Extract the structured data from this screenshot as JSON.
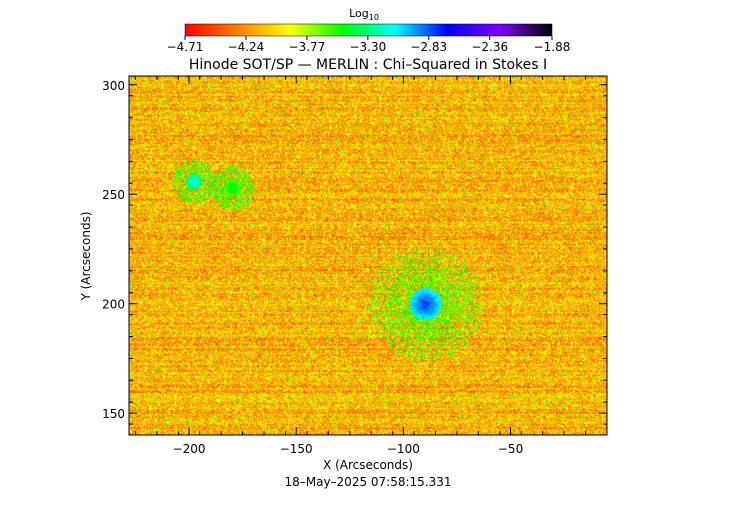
{
  "chart_data": {
    "type": "heatmap",
    "title": "Hinode SOT/SP — MERLIN : Chi–Squared in Stokes I",
    "xlabel": "X (Arcseconds)",
    "ylabel": "Y (Arcseconds)",
    "timestamp": "18–May–2025 07:58:15.331",
    "xlim": [
      -228,
      -5
    ],
    "ylim": [
      140,
      304
    ],
    "x_ticks": [
      -200,
      -150,
      -100,
      -50
    ],
    "x_tick_labels": [
      "−200",
      "−150",
      "−100",
      "−50"
    ],
    "y_ticks": [
      150,
      200,
      250,
      300
    ],
    "y_tick_labels": [
      "150",
      "200",
      "250",
      "300"
    ],
    "colorbar": {
      "label_main": "Log",
      "label_sub": "10",
      "range": [
        -4.71,
        -1.88
      ],
      "ticks": [
        -4.71,
        -4.24,
        -3.77,
        -3.3,
        -2.83,
        -2.36,
        -1.88
      ],
      "tick_labels": [
        "−4.71",
        "−4.24",
        "−3.77",
        "−3.30",
        "−2.83",
        "−2.36",
        "−1.88"
      ],
      "colors": [
        "#ff0000",
        "#ff8000",
        "#ffff00",
        "#00ff00",
        "#00ffff",
        "#0000ff",
        "#8000ff",
        "#000000"
      ]
    },
    "features": [
      {
        "x": -90,
        "y": 200,
        "peak": -2.75
      },
      {
        "x": -198,
        "y": 256,
        "peak": -3.1
      },
      {
        "x": -180,
        "y": 253,
        "peak": -3.4
      }
    ]
  }
}
